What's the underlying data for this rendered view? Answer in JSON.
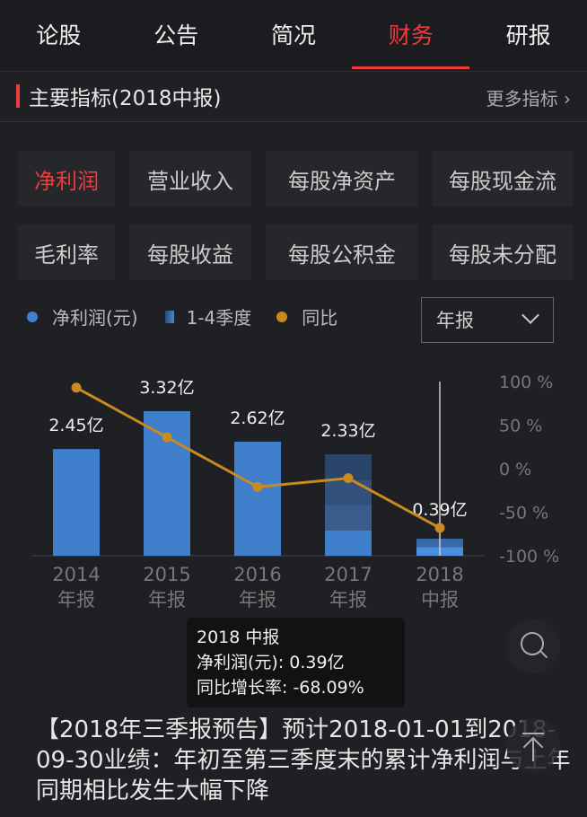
{
  "tabs": [
    {
      "label": "论股"
    },
    {
      "label": "公告"
    },
    {
      "label": "简况"
    },
    {
      "label": "财务",
      "active": true
    },
    {
      "label": "研报"
    }
  ],
  "section": {
    "title": "主要指标(2018中报)",
    "more": "更多指标 ›"
  },
  "indicators": [
    {
      "label": "净利润",
      "active": true
    },
    {
      "label": "营业收入"
    },
    {
      "label": "每股净资产"
    },
    {
      "label": "每股现金流"
    },
    {
      "label": "毛利率"
    },
    {
      "label": "每股收益"
    },
    {
      "label": "每股公积金"
    },
    {
      "label": "每股未分配"
    }
  ],
  "legend": {
    "net_profit": "净利润(元)",
    "quarters": "1-4季度",
    "yoy": "同比"
  },
  "select": {
    "value": "年报"
  },
  "colors": {
    "accent": "#ee3b3b",
    "bar": "#3f7fcc",
    "line": "#c98a20"
  },
  "chart_data": {
    "type": "bar+line",
    "categories": [
      "2014",
      "2015",
      "2016",
      "2017",
      "2018"
    ],
    "sub_labels": [
      "年报",
      "年报",
      "年报",
      "年报",
      "中报"
    ],
    "series": [
      {
        "name": "净利润(元)",
        "unit": "亿",
        "values": [
          2.45,
          3.32,
          2.62,
          2.33,
          0.39
        ],
        "labels": [
          "2.45亿",
          "3.32亿",
          "2.62亿",
          "2.33亿",
          "0.39亿"
        ]
      },
      {
        "name": "同比",
        "unit": "%",
        "values": [
          93,
          36,
          -21,
          -11,
          -68.09
        ]
      }
    ],
    "y2_ticks": [
      "100 %",
      "50 %",
      "0 %",
      "-50 %",
      "-100 %"
    ],
    "y2lim": [
      -100,
      100
    ]
  },
  "tooltip": {
    "title": "2018 中报",
    "line1": "净利润(元): 0.39亿",
    "line2": "同比增长率: -68.09%"
  },
  "news": {
    "text": "【2018年三季报预告】预计2018-01-01到2018-09-30业绩：年初至第三季度末的累计净利润与上年同期相比发生大幅下降"
  },
  "icons": {
    "search": "search-icon",
    "top": "back-to-top-icon"
  }
}
